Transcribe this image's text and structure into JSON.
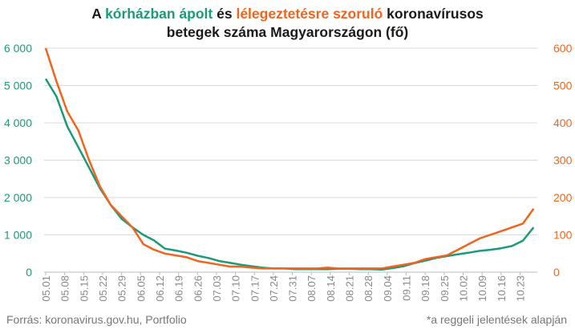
{
  "title": {
    "part1": "A ",
    "part2": "kórházban ápolt",
    "part3": " és ",
    "part4": "lélegeztetésre szoruló",
    "part5": " koronavírusos",
    "line2": "betegek száma Magyarországon  (fő)"
  },
  "footer": {
    "source": "Forrás: koronavirus.gov.hu, Portfolio",
    "note": "*a reggeli jelentések alapján"
  },
  "colors": {
    "hospitalized": "#1a9a78",
    "ventilated": "#f0641e",
    "grid": "#d9d9d9",
    "axis_text": "#888888"
  },
  "chart_data": {
    "type": "line",
    "x_tick_labels": [
      "05.01",
      "05.08",
      "05.15",
      "05.22",
      "05.29",
      "06.05",
      "06.12",
      "06.19",
      "06.26",
      "07.03",
      "07.10",
      "07.17",
      "07.24",
      "07.31",
      "08.07",
      "08.14",
      "08.21",
      "08.28",
      "09.04",
      "09.11",
      "09.18",
      "09.25",
      "10.02",
      "10.09",
      "10.16",
      "10.23"
    ],
    "y_left": {
      "ticks": [
        "0",
        "1 000",
        "2 000",
        "3 000",
        "4 000",
        "5 000",
        "6 000"
      ],
      "lim": [
        0,
        6000
      ]
    },
    "y_right": {
      "ticks": [
        "0",
        "100",
        "200",
        "300",
        "400",
        "500",
        "600"
      ],
      "lim": [
        0,
        600
      ]
    },
    "grid": "horizontal",
    "series": [
      {
        "name": "kórházban ápolt",
        "axis": "left",
        "x": [
          "05.01",
          "05.05",
          "05.09",
          "05.13",
          "05.17",
          "05.21",
          "05.25",
          "05.29",
          "06.02",
          "06.06",
          "06.10",
          "06.14",
          "06.18",
          "06.22",
          "06.26",
          "06.30",
          "07.04",
          "07.08",
          "07.12",
          "07.16",
          "07.20",
          "07.24",
          "07.28",
          "08.01",
          "08.05",
          "08.09",
          "08.13",
          "08.17",
          "08.21",
          "08.25",
          "08.29",
          "09.02",
          "09.06",
          "09.10",
          "09.14",
          "09.18",
          "09.22",
          "09.26",
          "09.30",
          "10.04",
          "10.08",
          "10.12",
          "10.16",
          "10.20",
          "10.24",
          "10.28"
        ],
        "values": [
          5180,
          4700,
          3900,
          3350,
          2800,
          2250,
          1800,
          1430,
          1200,
          1000,
          850,
          630,
          580,
          520,
          440,
          380,
          300,
          250,
          200,
          160,
          120,
          100,
          100,
          80,
          80,
          80,
          80,
          90,
          90,
          80,
          80,
          70,
          110,
          160,
          240,
          310,
          380,
          430,
          480,
          520,
          570,
          600,
          640,
          700,
          840,
          1200
        ]
      },
      {
        "name": "lélegeztetésre szoruló",
        "axis": "right",
        "x": [
          "05.01",
          "05.05",
          "05.09",
          "05.13",
          "05.17",
          "05.21",
          "05.25",
          "05.29",
          "06.02",
          "06.06",
          "06.10",
          "06.14",
          "06.18",
          "06.22",
          "06.26",
          "06.30",
          "07.04",
          "07.08",
          "07.12",
          "07.16",
          "07.20",
          "07.24",
          "07.28",
          "08.01",
          "08.05",
          "08.09",
          "08.13",
          "08.17",
          "08.21",
          "08.25",
          "08.29",
          "09.02",
          "09.06",
          "09.10",
          "09.14",
          "09.18",
          "09.22",
          "09.26",
          "09.30",
          "10.04",
          "10.08",
          "10.12",
          "10.16",
          "10.20",
          "10.24",
          "10.28"
        ],
        "values": [
          600,
          510,
          430,
          380,
          300,
          230,
          180,
          150,
          120,
          75,
          60,
          50,
          45,
          40,
          30,
          25,
          20,
          15,
          15,
          12,
          10,
          10,
          10,
          10,
          10,
          10,
          12,
          10,
          10,
          10,
          10,
          10,
          15,
          20,
          25,
          35,
          40,
          45,
          60,
          75,
          90,
          100,
          110,
          120,
          130,
          170
        ]
      }
    ]
  }
}
